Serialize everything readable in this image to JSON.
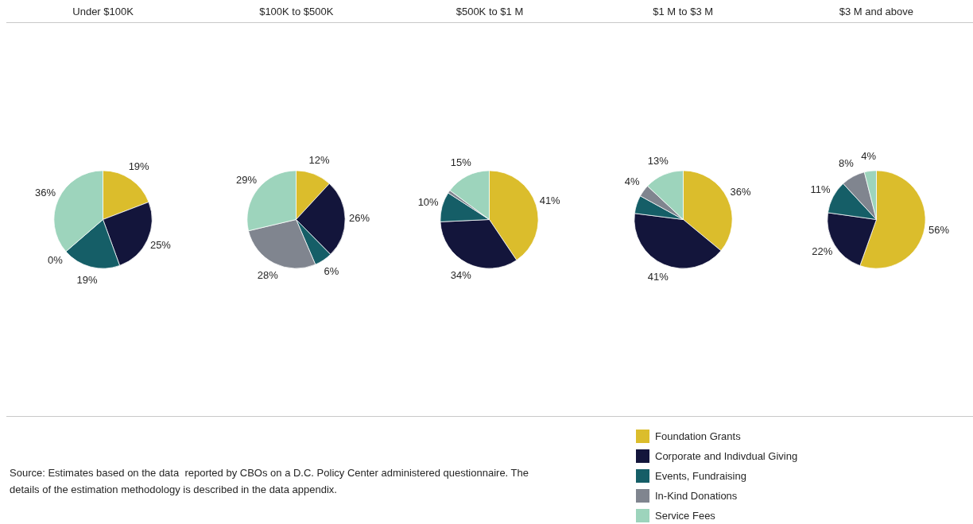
{
  "chart_data": {
    "type": "pie",
    "categories": [
      "Foundation Grants",
      "Corporate and Indivdual Giving",
      "Events, Fundraising",
      "In-Kind Donations",
      "Service Fees"
    ],
    "colors": [
      "#dbbd2c",
      "#13153b",
      "#155e67",
      "#80858f",
      "#9dd4bc"
    ],
    "series": [
      {
        "name": "Under $100K",
        "values": [
          19,
          25,
          19,
          0,
          36
        ],
        "value_labels": [
          "19%",
          "25%",
          "19%",
          "0%",
          "36%"
        ]
      },
      {
        "name": "$100K to $500K",
        "values": [
          12,
          26,
          6,
          28,
          29
        ],
        "value_labels": [
          "12%",
          "26%",
          "6%",
          "28%",
          "29%"
        ]
      },
      {
        "name": "$500K to $1 M",
        "values": [
          41,
          34,
          10,
          1,
          15
        ],
        "value_labels": [
          "41%",
          "34%",
          "10%",
          null,
          "15%"
        ]
      },
      {
        "name": "$1 M to $3 M",
        "values": [
          36,
          41,
          6,
          4,
          13
        ],
        "value_labels": [
          "36%",
          "41%",
          null,
          "4%",
          "13%"
        ]
      },
      {
        "name": "$3 M and above",
        "values": [
          56,
          22,
          11,
          8,
          4
        ],
        "value_labels": [
          "56%",
          "22%",
          "11%",
          "8%",
          "4%"
        ]
      }
    ],
    "legend": "bottom right",
    "annotations": [
      "Source: Estimates based on the data  reported by CBOs on a D.C. Policy Center administered questionnaire. The details of the estimation methodology is described in the data appendix."
    ]
  }
}
